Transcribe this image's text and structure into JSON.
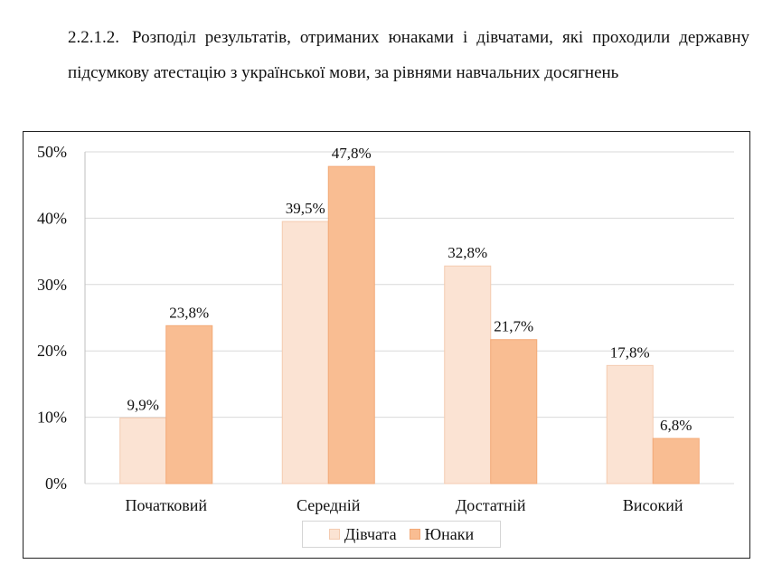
{
  "heading": {
    "number": "2.2.1.2.",
    "text": "Розподіл результатів, отриманих юнаками і дівчатами, які проходили державну підсумкову атестацію з української мови, за рівнями навчальних досягнень"
  },
  "colors": {
    "girls_fill": "#fbe3d3",
    "girls_stroke": "#f4cbb0",
    "boys_fill": "#f9bd92",
    "boys_stroke": "#f3aa78",
    "grid": "#d9d9d9",
    "axis": "#bfbfbf"
  },
  "chart_data": {
    "type": "bar",
    "categories": [
      "Початковий",
      "Середній",
      "Достатній",
      "Високий"
    ],
    "series": [
      {
        "name": "Дівчата",
        "values": [
          9.9,
          39.5,
          32.8,
          17.8
        ],
        "labels": [
          "9,9%",
          "39,5%",
          "32,8%",
          "17,8%"
        ]
      },
      {
        "name": "Юнаки",
        "values": [
          23.8,
          47.8,
          21.7,
          6.8
        ],
        "labels": [
          "23,8%",
          "47,8%",
          "21,7%",
          "6,8%"
        ]
      }
    ],
    "ylim": [
      0,
      50
    ],
    "yticks": [
      0,
      10,
      20,
      30,
      40,
      50
    ],
    "ytick_labels": [
      "0%",
      "10%",
      "20%",
      "30%",
      "40%",
      "50%"
    ],
    "grid": true,
    "legend_position": "bottom"
  }
}
